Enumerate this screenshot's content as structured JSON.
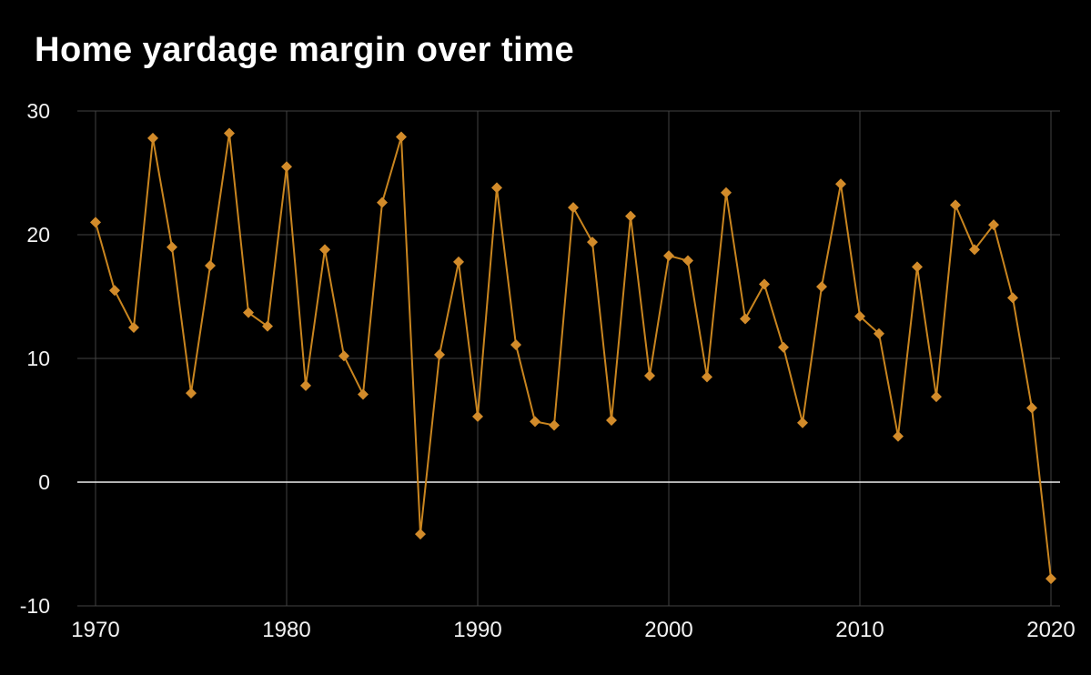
{
  "chart_data": {
    "type": "line",
    "title": "Home yardage margin over time",
    "xlabel": "",
    "ylabel": "",
    "x": [
      1970,
      1971,
      1972,
      1973,
      1974,
      1975,
      1976,
      1977,
      1978,
      1979,
      1980,
      1981,
      1982,
      1983,
      1984,
      1985,
      1986,
      1987,
      1988,
      1989,
      1990,
      1991,
      1992,
      1993,
      1994,
      1995,
      1996,
      1997,
      1998,
      1999,
      2000,
      2001,
      2002,
      2003,
      2004,
      2005,
      2006,
      2007,
      2008,
      2009,
      2010,
      2011,
      2012,
      2013,
      2014,
      2015,
      2016,
      2017,
      2018,
      2019,
      2020
    ],
    "values": [
      21.0,
      15.5,
      12.5,
      27.8,
      19.0,
      7.2,
      17.5,
      28.2,
      13.7,
      12.6,
      25.5,
      7.8,
      18.8,
      10.2,
      7.1,
      22.6,
      27.9,
      -4.2,
      10.3,
      17.8,
      5.3,
      23.8,
      11.1,
      4.9,
      4.6,
      22.2,
      19.4,
      5.0,
      21.5,
      8.6,
      18.3,
      17.9,
      8.5,
      23.4,
      13.2,
      16.0,
      10.9,
      4.8,
      15.8,
      24.1,
      13.4,
      12.0,
      3.7,
      17.4,
      6.9,
      22.4,
      18.8,
      20.8,
      14.9,
      6.0,
      -7.8
    ],
    "xticks": [
      1970,
      1980,
      1990,
      2000,
      2010,
      2020
    ],
    "yticks": [
      -10,
      0,
      10,
      20,
      30
    ],
    "xlim": [
      1970,
      2020
    ],
    "ylim": [
      -10,
      30
    ],
    "grid": "on",
    "legend": "none",
    "marker": "diamond",
    "colors": {
      "background": "#000000",
      "line": "#c9851f",
      "marker": "#d28b2a",
      "grid": "#424242",
      "zero_line": "#ededed",
      "tick_label": "#f2f2f2",
      "title": "#ffffff"
    }
  }
}
